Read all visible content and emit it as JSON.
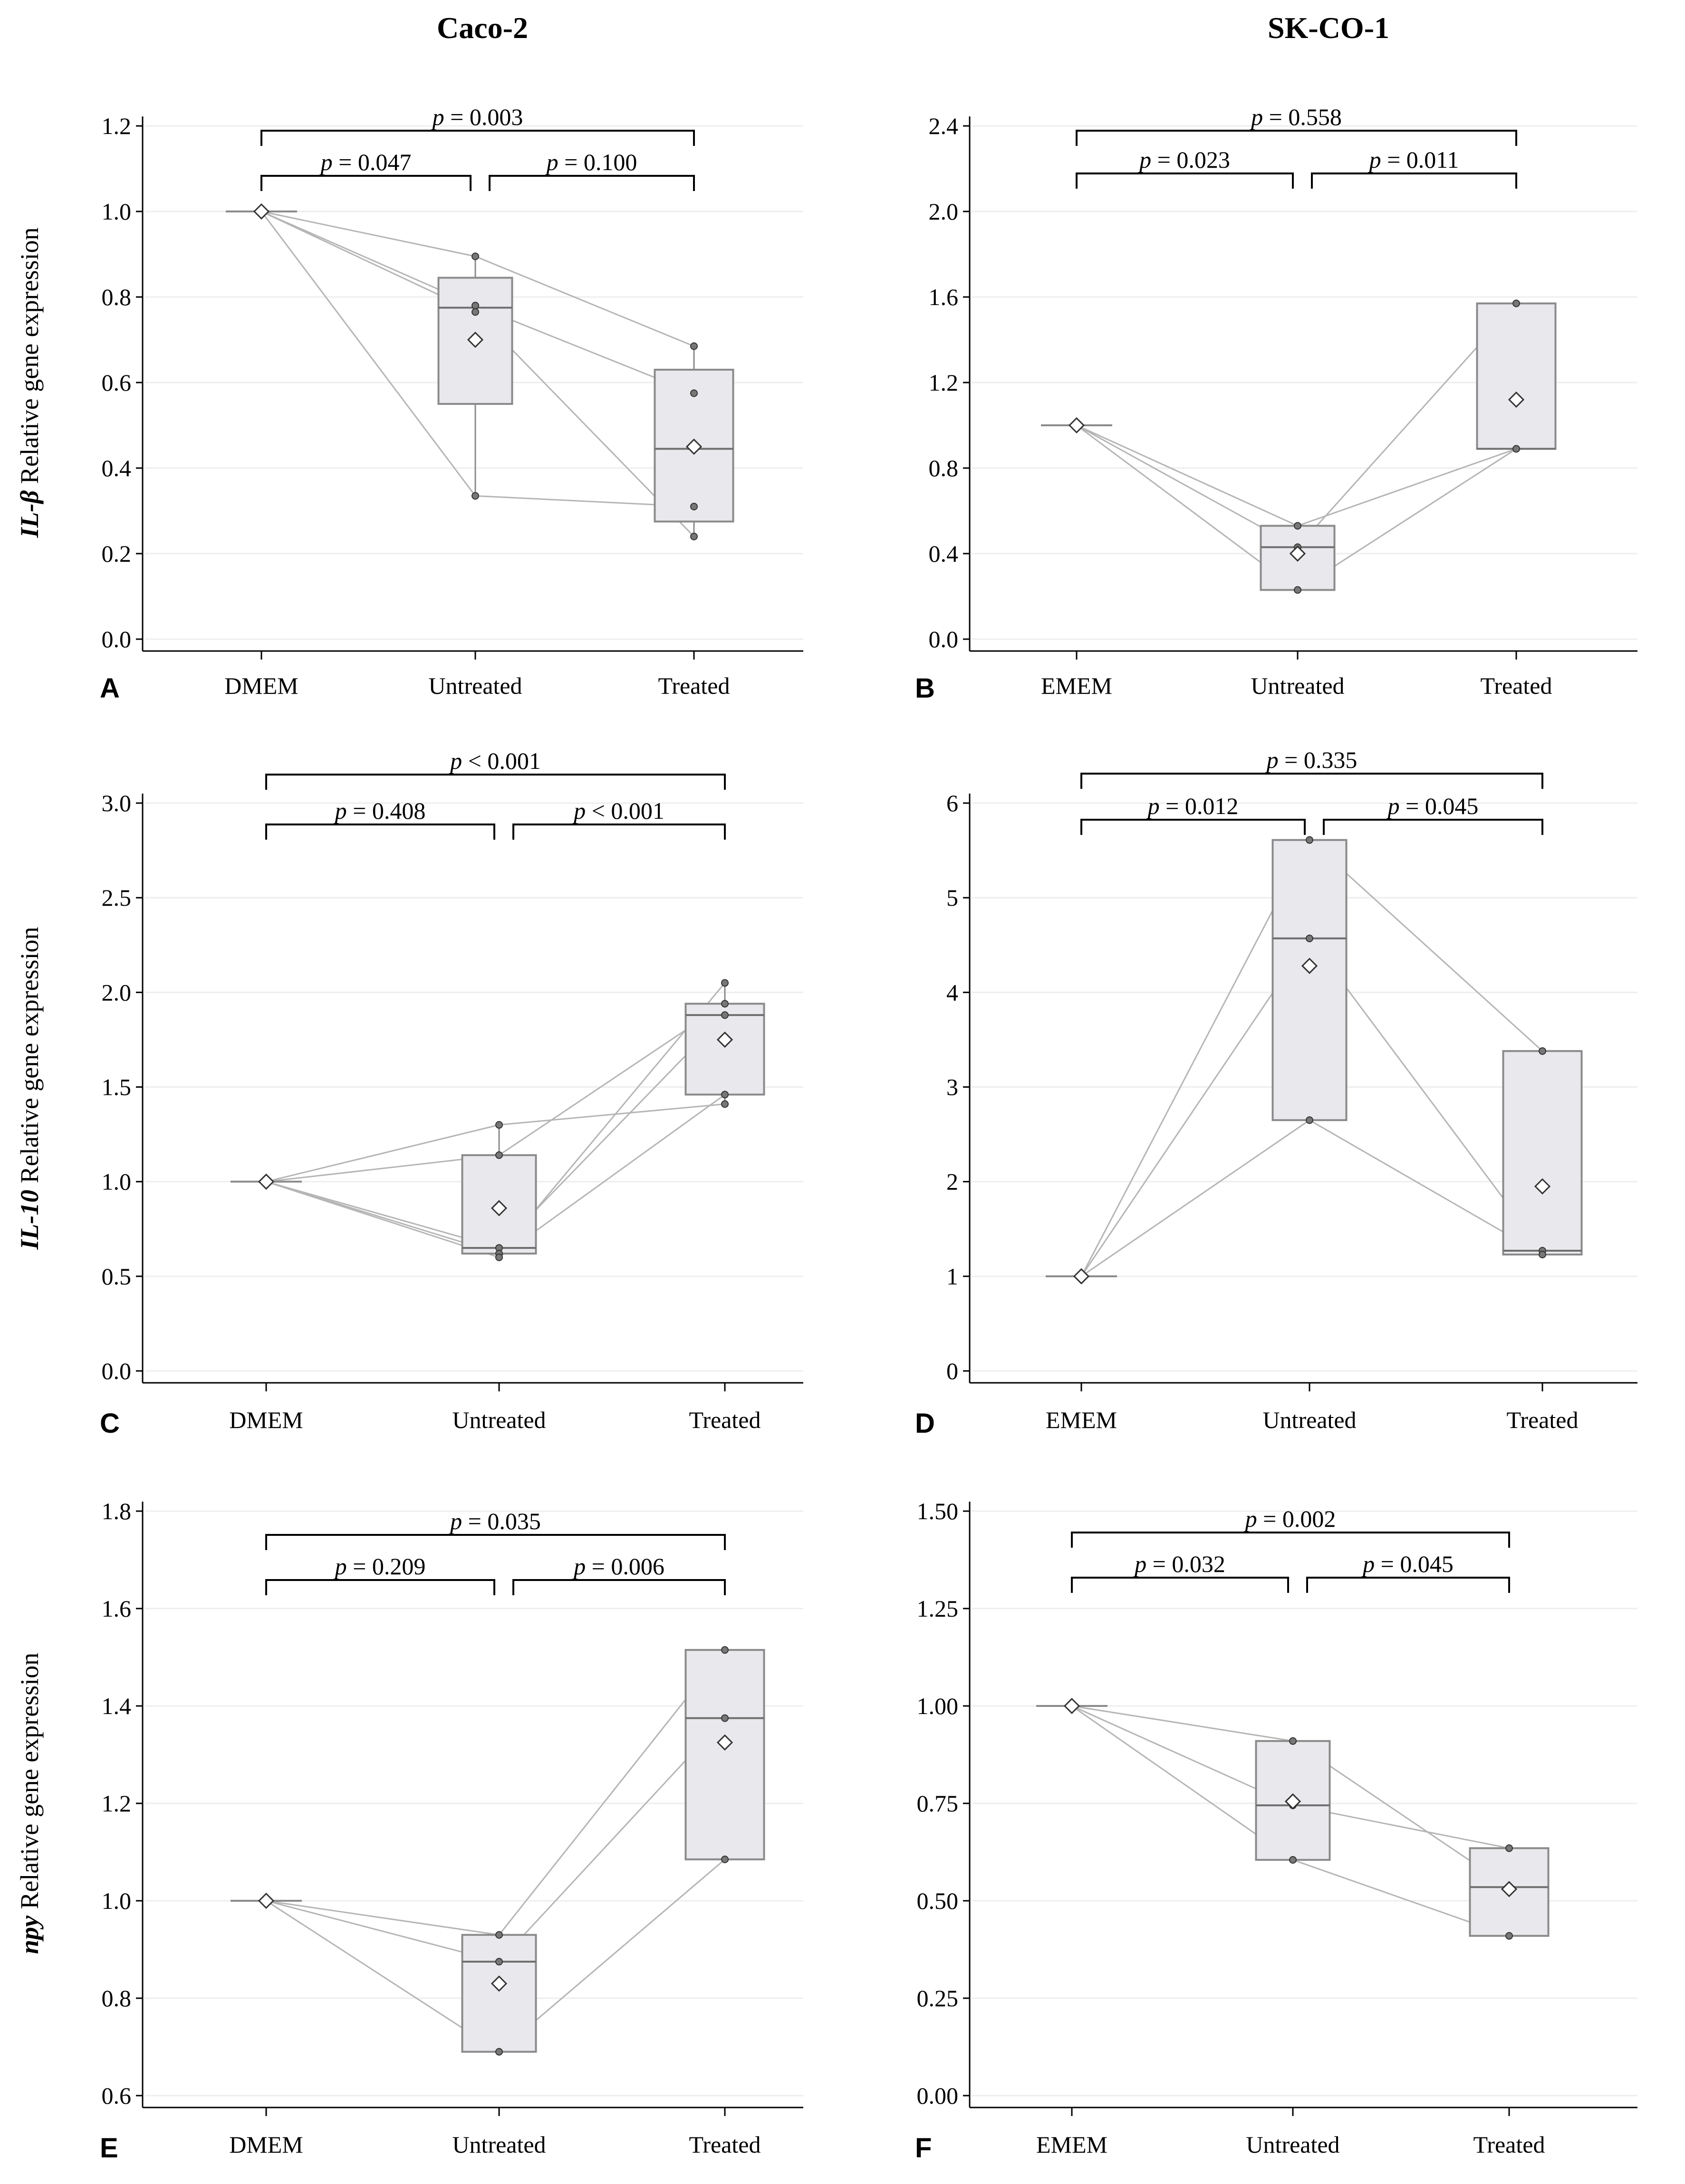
{
  "column_titles": [
    "Caco-2",
    "SK-CO-1"
  ],
  "chart_data": [
    {
      "type": "box",
      "panel": "A",
      "cell_line": "Caco-2",
      "gene": "IL-β",
      "ylabel_suffix": " Relative gene expression",
      "categories": [
        "DMEM",
        "Untreated",
        "Treated"
      ],
      "ylim": [
        0.0,
        1.2
      ],
      "yticks": [
        0.0,
        0.2,
        0.4,
        0.6,
        0.8,
        1.0,
        1.2
      ],
      "tick_decimals": 1,
      "boxes": [
        {
          "q1": 1.0,
          "median": 1.0,
          "q3": 1.0,
          "wlo": 1.0,
          "whi": 1.0,
          "mean": 1.0
        },
        {
          "q1": 0.55,
          "median": 0.775,
          "q3": 0.845,
          "wlo": 0.335,
          "whi": 0.895,
          "mean": 0.7
        },
        {
          "q1": 0.275,
          "median": 0.445,
          "q3": 0.63,
          "wlo": 0.24,
          "whi": 0.685,
          "mean": 0.45
        }
      ],
      "subjects": [
        [
          1.0,
          0.895,
          0.685
        ],
        [
          1.0,
          0.78,
          0.575
        ],
        [
          1.0,
          0.765,
          0.24
        ],
        [
          1.0,
          0.335,
          0.31
        ]
      ],
      "comparisons": [
        {
          "from": 0,
          "to": 1,
          "text": "= 0.047"
        },
        {
          "from": 1,
          "to": 2,
          "text": "= 0.100"
        },
        {
          "from": 0,
          "to": 2,
          "text": "= 0.003"
        }
      ]
    },
    {
      "type": "box",
      "panel": "B",
      "cell_line": "SK-CO-1",
      "gene": "",
      "ylabel_suffix": "",
      "categories": [
        "EMEM",
        "Untreated",
        "Treated"
      ],
      "ylim": [
        0.0,
        2.4
      ],
      "yticks": [
        0.0,
        0.4,
        0.8,
        1.2,
        1.6,
        2.0,
        2.4
      ],
      "tick_decimals": 1,
      "boxes": [
        {
          "q1": 1.0,
          "median": 1.0,
          "q3": 1.0,
          "wlo": 1.0,
          "whi": 1.0,
          "mean": 1.0
        },
        {
          "q1": 0.23,
          "median": 0.43,
          "q3": 0.53,
          "wlo": 0.23,
          "whi": 0.53,
          "mean": 0.4
        },
        {
          "q1": 0.89,
          "median": 0.89,
          "q3": 1.57,
          "wlo": 0.89,
          "whi": 1.57,
          "mean": 1.12
        }
      ],
      "subjects": [
        [
          1.0,
          0.53,
          0.89
        ],
        [
          1.0,
          0.43,
          1.57
        ],
        [
          1.0,
          0.23,
          0.89
        ]
      ],
      "comparisons": [
        {
          "from": 0,
          "to": 1,
          "text": "= 0.023"
        },
        {
          "from": 1,
          "to": 2,
          "text": "= 0.011"
        },
        {
          "from": 0,
          "to": 2,
          "text": "= 0.558"
        }
      ]
    },
    {
      "type": "box",
      "panel": "C",
      "cell_line": "Caco-2",
      "gene": "IL-10",
      "ylabel_suffix": " Relative gene expression",
      "categories": [
        "DMEM",
        "Untreated",
        "Treated"
      ],
      "ylim": [
        0.0,
        3.0
      ],
      "yticks": [
        0.0,
        0.5,
        1.0,
        1.5,
        2.0,
        2.5,
        3.0
      ],
      "tick_decimals": 1,
      "boxes": [
        {
          "q1": 1.0,
          "median": 1.0,
          "q3": 1.0,
          "wlo": 1.0,
          "whi": 1.0,
          "mean": 1.0
        },
        {
          "q1": 0.62,
          "median": 0.65,
          "q3": 1.14,
          "wlo": 0.6,
          "whi": 1.3,
          "mean": 0.86
        },
        {
          "q1": 1.46,
          "median": 1.88,
          "q3": 1.94,
          "wlo": 1.41,
          "whi": 2.05,
          "mean": 1.75
        }
      ],
      "subjects": [
        [
          1.0,
          1.3,
          1.41
        ],
        [
          1.0,
          1.14,
          1.94
        ],
        [
          1.0,
          0.65,
          1.88
        ],
        [
          1.0,
          0.62,
          2.05
        ],
        [
          1.0,
          0.6,
          1.46
        ]
      ],
      "comparisons": [
        {
          "from": 0,
          "to": 1,
          "text": "= 0.408"
        },
        {
          "from": 1,
          "to": 2,
          "text": "< 0.001"
        },
        {
          "from": 0,
          "to": 2,
          "text": "< 0.001"
        }
      ]
    },
    {
      "type": "box",
      "panel": "D",
      "cell_line": "SK-CO-1",
      "gene": "",
      "ylabel_suffix": "",
      "categories": [
        "EMEM",
        "Untreated",
        "Treated"
      ],
      "ylim": [
        0,
        6
      ],
      "yticks": [
        0,
        1,
        2,
        3,
        4,
        5,
        6
      ],
      "tick_decimals": 0,
      "boxes": [
        {
          "q1": 1.0,
          "median": 1.0,
          "q3": 1.0,
          "wlo": 1.0,
          "whi": 1.0,
          "mean": 1.0
        },
        {
          "q1": 2.65,
          "median": 4.57,
          "q3": 5.61,
          "wlo": 2.65,
          "whi": 5.61,
          "mean": 4.28
        },
        {
          "q1": 1.23,
          "median": 1.27,
          "q3": 3.38,
          "wlo": 1.23,
          "whi": 3.38,
          "mean": 1.95
        }
      ],
      "subjects": [
        [
          1.0,
          5.61,
          3.38
        ],
        [
          1.0,
          4.57,
          1.27
        ],
        [
          1.0,
          2.65,
          1.23
        ]
      ],
      "comparisons": [
        {
          "from": 0,
          "to": 1,
          "text": "= 0.012"
        },
        {
          "from": 1,
          "to": 2,
          "text": "= 0.045"
        },
        {
          "from": 0,
          "to": 2,
          "text": "= 0.335"
        }
      ]
    },
    {
      "type": "box",
      "panel": "E",
      "cell_line": "Caco-2",
      "gene": "npy",
      "ylabel_suffix": " Relative gene expression",
      "categories": [
        "DMEM",
        "Untreated",
        "Treated"
      ],
      "ylim": [
        0.6,
        1.8
      ],
      "yticks": [
        0.6,
        0.8,
        1.0,
        1.2,
        1.4,
        1.6,
        1.8
      ],
      "tick_decimals": 1,
      "boxes": [
        {
          "q1": 1.0,
          "median": 1.0,
          "q3": 1.0,
          "wlo": 1.0,
          "whi": 1.0,
          "mean": 1.0
        },
        {
          "q1": 0.69,
          "median": 0.875,
          "q3": 0.93,
          "wlo": 0.69,
          "whi": 0.93,
          "mean": 0.83
        },
        {
          "q1": 1.085,
          "median": 1.375,
          "q3": 1.515,
          "wlo": 1.085,
          "whi": 1.515,
          "mean": 1.325
        }
      ],
      "subjects": [
        [
          1.0,
          0.93,
          1.515
        ],
        [
          1.0,
          0.875,
          1.375
        ],
        [
          1.0,
          0.69,
          1.085
        ]
      ],
      "comparisons": [
        {
          "from": 0,
          "to": 1,
          "text": "= 0.209"
        },
        {
          "from": 1,
          "to": 2,
          "text": "= 0.006"
        },
        {
          "from": 0,
          "to": 2,
          "text": "= 0.035"
        }
      ]
    },
    {
      "type": "box",
      "panel": "F",
      "cell_line": "SK-CO-1",
      "gene": "",
      "ylabel_suffix": "",
      "categories": [
        "EMEM",
        "Untreated",
        "Treated"
      ],
      "ylim": [
        0.0,
        1.5
      ],
      "yticks": [
        0.0,
        0.25,
        0.5,
        0.75,
        1.0,
        1.25,
        1.5
      ],
      "tick_decimals": 2,
      "boxes": [
        {
          "q1": 1.0,
          "median": 1.0,
          "q3": 1.0,
          "wlo": 1.0,
          "whi": 1.0,
          "mean": 1.0
        },
        {
          "q1": 0.605,
          "median": 0.745,
          "q3": 0.91,
          "wlo": 0.605,
          "whi": 0.91,
          "mean": 0.755
        },
        {
          "q1": 0.41,
          "median": 0.535,
          "q3": 0.635,
          "wlo": 0.41,
          "whi": 0.635,
          "mean": 0.53
        }
      ],
      "subjects": [
        [
          1.0,
          0.91,
          0.535
        ],
        [
          1.0,
          0.745,
          0.635
        ],
        [
          1.0,
          0.605,
          0.41
        ]
      ],
      "comparisons": [
        {
          "from": 0,
          "to": 1,
          "text": "= 0.032"
        },
        {
          "from": 1,
          "to": 2,
          "text": "= 0.045"
        },
        {
          "from": 0,
          "to": 2,
          "text": "= 0.002"
        }
      ]
    }
  ]
}
